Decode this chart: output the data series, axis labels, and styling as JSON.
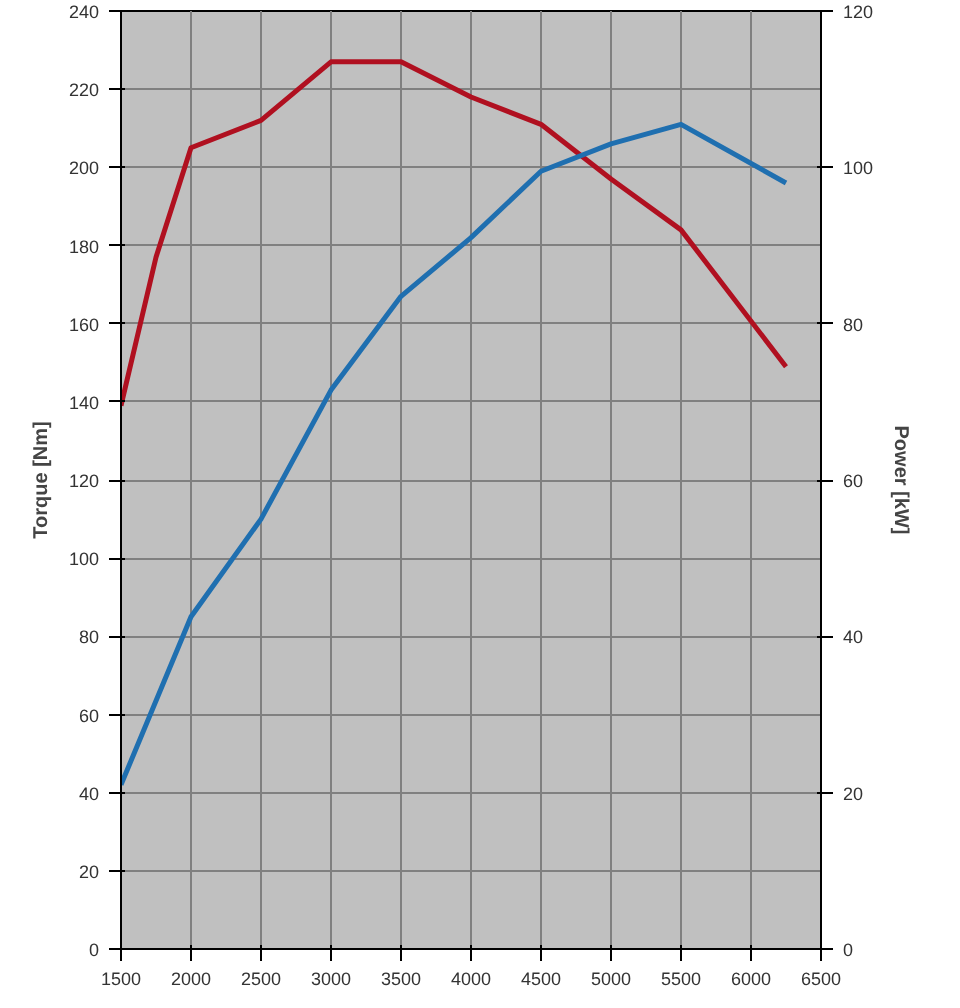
{
  "chart_data": {
    "type": "line",
    "xlabel": null,
    "ylabel": "Torque [Nm]",
    "y2label": "Power [kW]",
    "x": [
      1500,
      1750,
      2000,
      2500,
      3000,
      3500,
      4000,
      4500,
      5000,
      5500,
      6250
    ],
    "series": [
      {
        "color": "#b01020",
        "values": [
          139,
          177,
          205,
          212,
          227,
          227,
          218,
          211,
          197,
          184,
          149
        ]
      },
      {
        "color": "#1f6fb0",
        "axis": "y2",
        "x": [
          1500,
          2000,
          2500,
          3000,
          3500,
          4000,
          4500,
          5000,
          5500,
          6250
        ],
        "values": [
          21,
          42.5,
          55,
          71.5,
          83.5,
          91,
          99.5,
          103,
          105.5,
          98
        ]
      }
    ],
    "xlim": [
      1500,
      6500
    ],
    "xticks": [
      1500,
      2000,
      2500,
      3000,
      3500,
      4000,
      4500,
      5000,
      5500,
      6000,
      6500
    ],
    "ylim": [
      0,
      240
    ],
    "yticks": [
      0,
      20,
      40,
      60,
      80,
      100,
      120,
      140,
      160,
      180,
      200,
      220,
      240
    ],
    "y2lim": [
      0,
      120
    ],
    "y2ticks": [
      0,
      20,
      40,
      60,
      80,
      100,
      120
    ],
    "grid": true,
    "marker": "none",
    "line_style": "solid"
  }
}
